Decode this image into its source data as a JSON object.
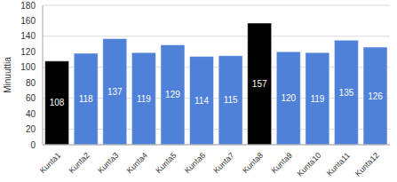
{
  "chart_data": {
    "type": "bar",
    "y_label": "Minuuttia",
    "categories": [
      "Kunta1",
      "Kunta2",
      "Kunta3",
      "Kunta4",
      "Kunta5",
      "Kunta6",
      "Kunta7",
      "Kunta8",
      "Kunta9",
      "Kunta10",
      "Kunta11",
      "Kunta12"
    ],
    "values": [
      108,
      118,
      137,
      119,
      129,
      114,
      115,
      157,
      120,
      119,
      135,
      126
    ],
    "colors": [
      "#000000",
      "#4f81d9",
      "#4f81d9",
      "#4f81d9",
      "#4f81d9",
      "#4f81d9",
      "#4f81d9",
      "#000000",
      "#4f81d9",
      "#4f81d9",
      "#4f81d9",
      "#4f81d9"
    ],
    "ylim": [
      0,
      180
    ],
    "yticks": [
      0,
      20,
      40,
      60,
      80,
      100,
      120,
      140,
      160,
      180
    ],
    "grid": true,
    "data_labels": true
  }
}
